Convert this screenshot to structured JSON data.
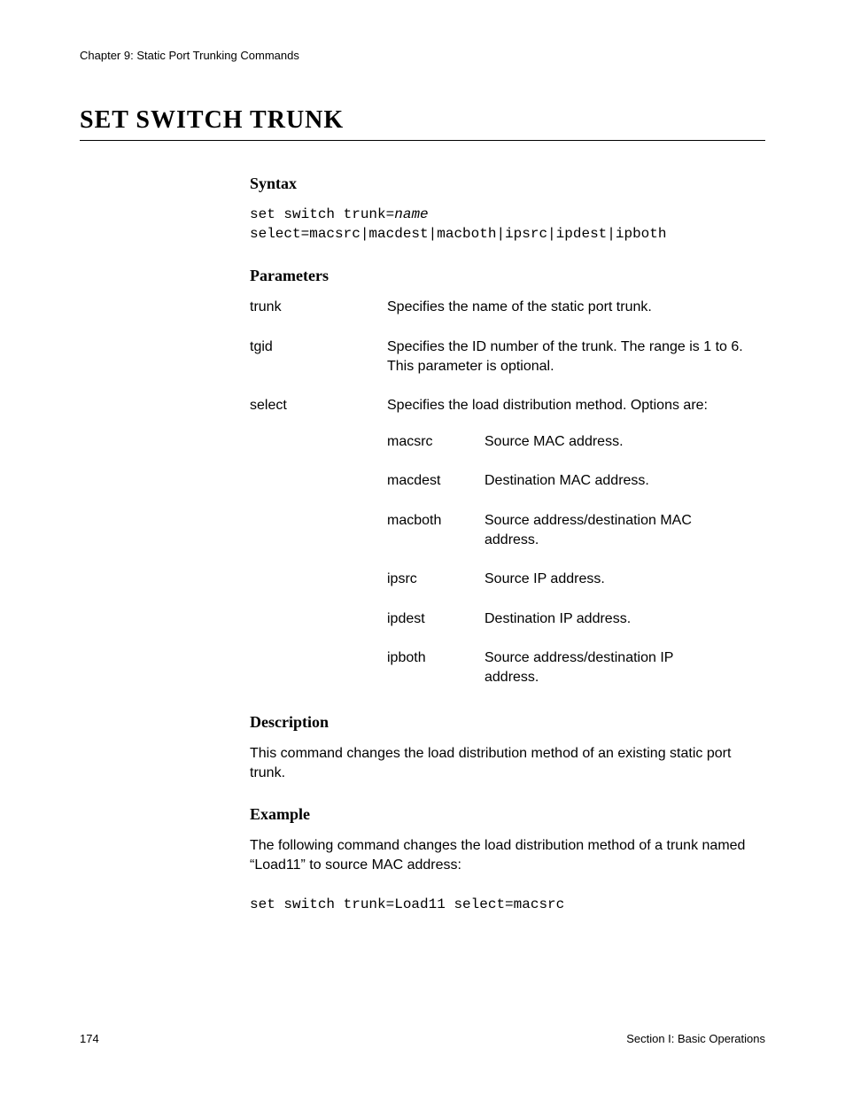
{
  "header": {
    "chapter": "Chapter 9: Static Port Trunking Commands"
  },
  "title": "SET SWITCH TRUNK",
  "sections": {
    "syntax": {
      "heading": "Syntax",
      "line1_prefix": "set switch trunk=",
      "line1_var": "name",
      "line2": "select=macsrc|macdest|macboth|ipsrc|ipdest|ipboth"
    },
    "parameters": {
      "heading": "Parameters",
      "rows": [
        {
          "name": "trunk",
          "desc": "Specifies the name of the static port trunk."
        },
        {
          "name": "tgid",
          "desc": "Specifies the ID number of the trunk. The range is 1 to 6. This parameter is optional."
        },
        {
          "name": "select",
          "desc": "Specifies the load distribution method. Options are:"
        }
      ],
      "options": [
        {
          "name": "macsrc",
          "desc": "Source MAC address."
        },
        {
          "name": "macdest",
          "desc": "Destination MAC address."
        },
        {
          "name": "macboth",
          "desc": "Source address/destination MAC address."
        },
        {
          "name": "ipsrc",
          "desc": "Source IP address."
        },
        {
          "name": "ipdest",
          "desc": "Destination IP address."
        },
        {
          "name": "ipboth",
          "desc": "Source address/destination IP address."
        }
      ]
    },
    "description": {
      "heading": "Description",
      "text": "This command changes the load distribution method of an existing static port trunk."
    },
    "example": {
      "heading": "Example",
      "text": "The following command changes the load distribution method of a trunk named “Load11” to source MAC address:",
      "code": "set switch trunk=Load11 select=macsrc"
    }
  },
  "footer": {
    "page": "174",
    "section": "Section I: Basic Operations"
  }
}
